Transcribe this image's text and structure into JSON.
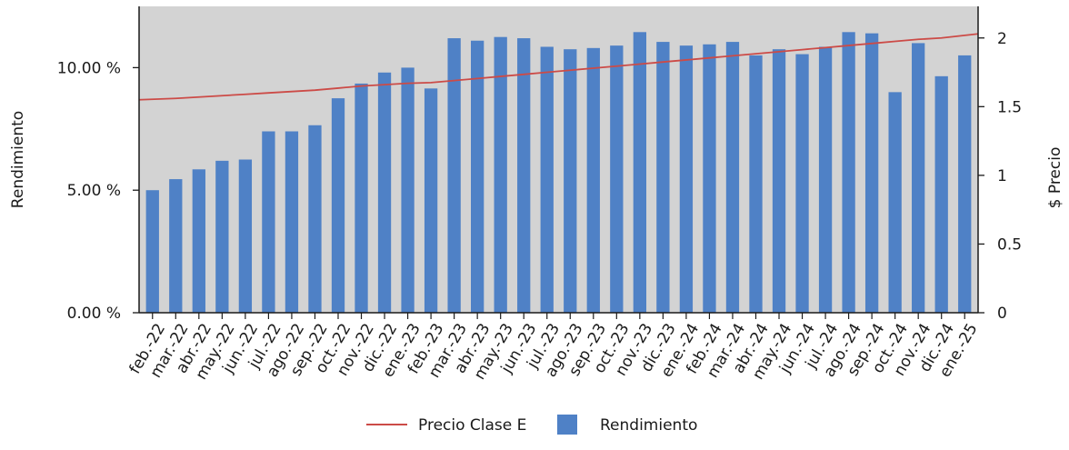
{
  "chart_data": {
    "type": "bar",
    "categories": [
      "feb.-22",
      "mar.-22",
      "abr.-22",
      "may.-22",
      "jun.-22",
      "jul.-22",
      "ago.-22",
      "sep.-22",
      "oct.-22",
      "nov.-22",
      "dic.-22",
      "ene.-23",
      "feb.-23",
      "mar.-23",
      "abr.-23",
      "may.-23",
      "jun.-23",
      "jul.-23",
      "ago.-23",
      "sep.-23",
      "oct.-23",
      "nov.-23",
      "dic.-23",
      "ene.-24",
      "feb.-24",
      "mar.-24",
      "abr.-24",
      "may.-24",
      "jun.-24",
      "jul.-24",
      "ago.-24",
      "sep.-24",
      "oct.-24",
      "nov.-24",
      "dic.-24",
      "ene.-25"
    ],
    "series": [
      {
        "name": "Rendimiento",
        "type": "bar",
        "axis": "left",
        "color": "#4f81c6",
        "values": [
          5.0,
          5.45,
          5.85,
          6.2,
          6.25,
          7.4,
          7.4,
          7.65,
          8.75,
          9.35,
          9.8,
          10.0,
          9.15,
          11.2,
          11.1,
          11.25,
          11.2,
          10.85,
          10.75,
          10.8,
          10.9,
          11.45,
          11.05,
          10.9,
          10.95,
          11.05,
          10.5,
          10.75,
          10.55,
          10.85,
          11.45,
          11.4,
          9.0,
          11.0,
          9.65,
          10.5
        ]
      },
      {
        "name": "Precio Clase E",
        "type": "line",
        "axis": "right",
        "color": "#cc4b47",
        "values": [
          1.55,
          1.56,
          1.57,
          1.58,
          1.59,
          1.6,
          1.61,
          1.62,
          1.635,
          1.65,
          1.66,
          1.67,
          1.675,
          1.69,
          1.705,
          1.72,
          1.735,
          1.75,
          1.765,
          1.78,
          1.795,
          1.81,
          1.825,
          1.84,
          1.855,
          1.87,
          1.885,
          1.9,
          1.915,
          1.93,
          1.945,
          1.96,
          1.975,
          1.99,
          2.0,
          2.03
        ]
      }
    ],
    "y_left": {
      "label": "Rendimiento",
      "min": 0,
      "max": 12.5,
      "ticks": [
        0,
        5,
        10
      ],
      "tick_labels": [
        "0.00 %",
        "5.00 %",
        "10.00 %"
      ]
    },
    "y_right": {
      "label": "$ Precio",
      "min": 0,
      "max": 2.23,
      "ticks": [
        0,
        0.5,
        1,
        1.5,
        2
      ],
      "tick_labels": [
        "0",
        "0.5",
        "1",
        "1.5",
        "2"
      ]
    },
    "plot_background": "#d3d3d3",
    "grid": false,
    "legend_position": "bottom",
    "legend": [
      {
        "label": "Precio Clase E",
        "kind": "line",
        "color": "#cc4b47"
      },
      {
        "label": "Rendimiento",
        "kind": "bar",
        "color": "#4f81c6"
      }
    ]
  }
}
